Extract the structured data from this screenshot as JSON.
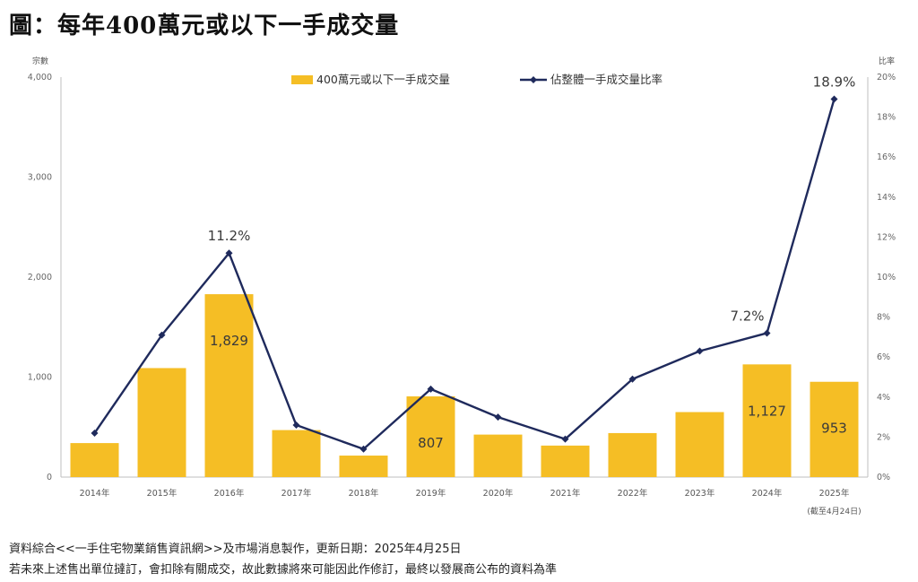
{
  "title": "圖：每年400萬元或以下一手成交量",
  "footer": {
    "line1": "資料綜合<<一手住宅物業銷售資訊網>>及市場消息製作，更新日期：2025年4月25日",
    "line2": "若未來上述售出單位撻訂，會扣除有關成交，故此數據將來可能因此作修訂，最終以發展商公布的資料為準"
  },
  "chart_data": {
    "type": "bar",
    "title": "每年400萬元或以下一手成交量",
    "left_axis_label": "宗數",
    "right_axis_label": "比率",
    "categories": [
      "2014年",
      "2015年",
      "2016年",
      "2017年",
      "2018年",
      "2019年",
      "2020年",
      "2021年",
      "2022年",
      "2023年",
      "2024年",
      "2025年"
    ],
    "category_note": "(截至4月24日)",
    "ylim": [
      0,
      4000
    ],
    "yticks": [
      "0",
      "1,000",
      "2,000",
      "3,000",
      "4,000"
    ],
    "y2lim": [
      0,
      20
    ],
    "y2ticks": [
      "0%",
      "2%",
      "4%",
      "6%",
      "8%",
      "10%",
      "12%",
      "14%",
      "16%",
      "18%",
      "20%"
    ],
    "series": [
      {
        "name": "400萬元或以下一手成交量",
        "kind": "bar",
        "color": "#F5BE25",
        "values": [
          340,
          1090,
          1829,
          470,
          215,
          807,
          425,
          315,
          440,
          650,
          1127,
          953
        ],
        "labels": {
          "2": "1,829",
          "5": "807",
          "10": "1,127",
          "11": "953"
        }
      },
      {
        "name": "佔整體一手成交量比率",
        "kind": "line",
        "color": "#1F2A5C",
        "values": [
          2.2,
          7.1,
          11.2,
          2.6,
          1.4,
          4.4,
          3.0,
          1.9,
          4.9,
          6.3,
          7.2,
          18.9
        ],
        "labels": {
          "2": "11.2%",
          "10": "7.2%",
          "11": "18.9%"
        }
      }
    ],
    "legend_position": "top",
    "grid": false
  }
}
